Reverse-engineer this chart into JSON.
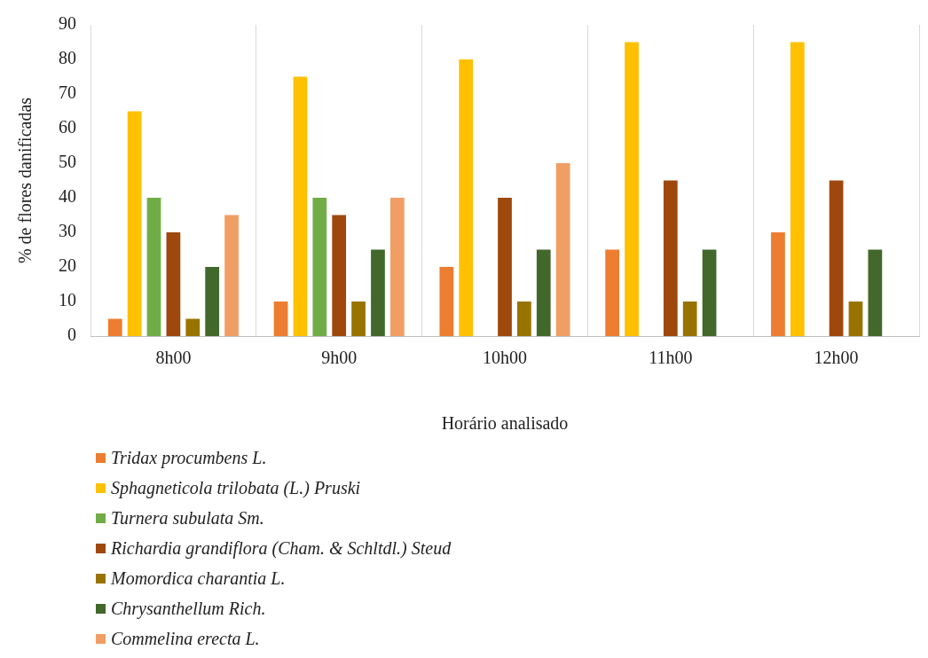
{
  "chart_data": {
    "type": "bar",
    "xlabel": "Horário analisado",
    "ylabel": "% de flores danificadas",
    "categories": [
      "8h00",
      "9h00",
      "10h00",
      "11h00",
      "12h00"
    ],
    "ylim": [
      0,
      90
    ],
    "yticks": [
      0,
      10,
      20,
      30,
      40,
      50,
      60,
      70,
      80,
      90
    ],
    "grid": "x",
    "legend": "bottom",
    "series": [
      {
        "name": "Tridax procumbens L.",
        "color": "#ed7d31",
        "values": [
          5,
          10,
          20,
          25,
          30
        ]
      },
      {
        "name": "Sphagneticola trilobata (L.) Pruski",
        "color": "#ffc000",
        "values": [
          65,
          75,
          80,
          85,
          85
        ]
      },
      {
        "name": "Turnera subulata Sm.",
        "color": "#70ad47",
        "values": [
          40,
          40,
          null,
          null,
          null
        ]
      },
      {
        "name": "Richardia grandiflora (Cham. & Schltdl.) Steud",
        "color": "#9e480e",
        "values": [
          30,
          35,
          40,
          45,
          45
        ]
      },
      {
        "name": "Momordica charantia L.",
        "color": "#997300",
        "values": [
          5,
          10,
          10,
          10,
          10
        ]
      },
      {
        "name": "Chrysanthellum Rich.",
        "color": "#43682b",
        "values": [
          20,
          25,
          25,
          25,
          25
        ]
      },
      {
        "name": "Commelina erecta L.",
        "color": "#f19e64",
        "values": [
          35,
          40,
          50,
          null,
          null
        ]
      }
    ]
  }
}
